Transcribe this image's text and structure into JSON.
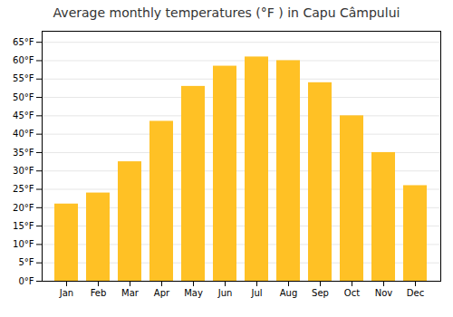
{
  "chart_data": {
    "type": "bar",
    "title": "Average monthly temperatures (°F ) in Capu Câmpului",
    "categories": [
      "Jan",
      "Feb",
      "Mar",
      "Apr",
      "May",
      "Jun",
      "Jul",
      "Aug",
      "Sep",
      "Oct",
      "Nov",
      "Dec"
    ],
    "values": [
      21,
      24,
      32.5,
      43.5,
      53,
      58.5,
      61,
      60,
      54,
      45,
      35,
      26
    ],
    "color": "#FFC125",
    "ylim": [
      0,
      68
    ],
    "yticks": [
      {
        "value": 0,
        "label": "0°F"
      },
      {
        "value": 5,
        "label": "5°F"
      },
      {
        "value": 10,
        "label": "10°F"
      },
      {
        "value": 15,
        "label": "15°F"
      },
      {
        "value": 20,
        "label": "20°F"
      },
      {
        "value": 25,
        "label": "25°F"
      },
      {
        "value": 30,
        "label": "30°F"
      },
      {
        "value": 35,
        "label": "35°F"
      },
      {
        "value": 40,
        "label": "40°F"
      },
      {
        "value": 45,
        "label": "45°F"
      },
      {
        "value": 50,
        "label": "50°F"
      },
      {
        "value": 55,
        "label": "55°F"
      },
      {
        "value": 60,
        "label": "60°F"
      },
      {
        "value": 65,
        "label": "65°F"
      }
    ],
    "grid": true
  }
}
